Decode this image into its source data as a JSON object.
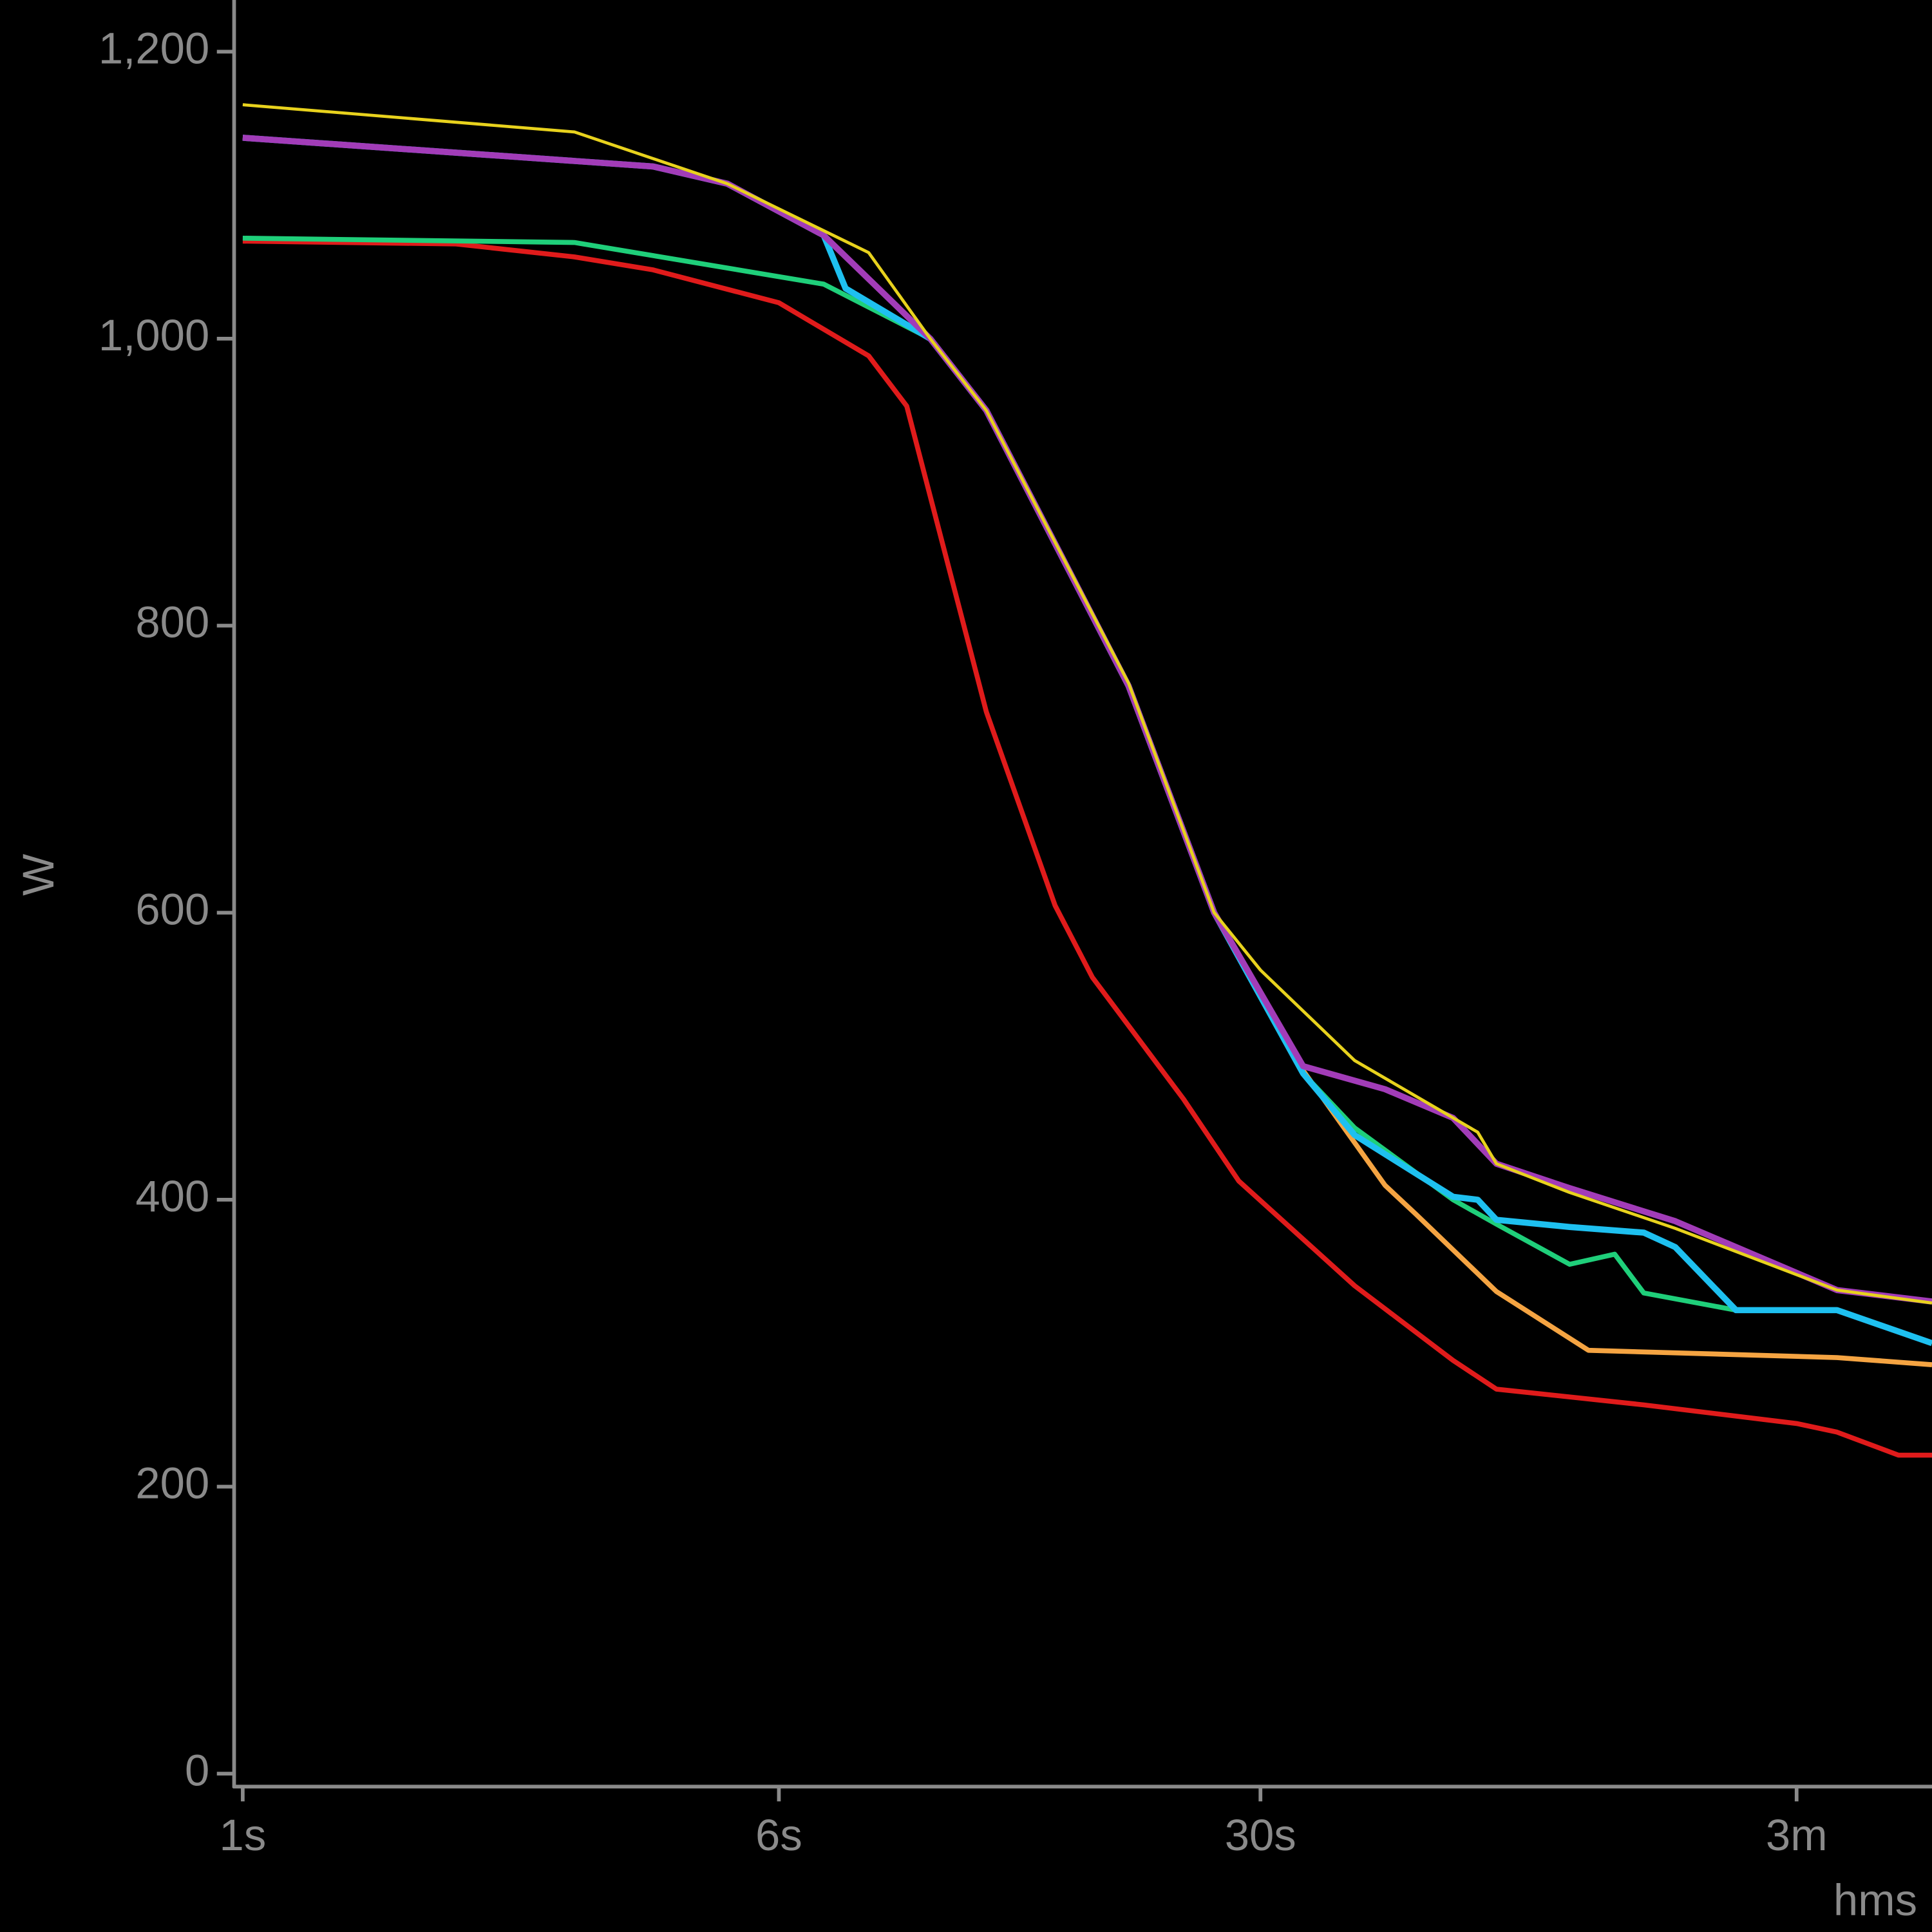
{
  "chart_data": {
    "type": "line",
    "y_label": "W",
    "x_label": "hms",
    "xscale": "log",
    "xlim": [
      1,
      283
    ],
    "ylim": [
      -9,
      1236
    ],
    "xticks": [
      {
        "value": 1,
        "label": "1s"
      },
      {
        "value": 6,
        "label": "6s"
      },
      {
        "value": 30,
        "label": "30s"
      },
      {
        "value": 180,
        "label": "3m"
      }
    ],
    "yticks": [
      0,
      200,
      400,
      600,
      800,
      {
        "value": 1000,
        "label": "1,000"
      },
      {
        "value": 1200,
        "label": "1,200"
      }
    ],
    "series": [
      {
        "color": "#e01b1b",
        "width": 4,
        "x": [
          1,
          2.04,
          3.03,
          3.94,
          6,
          8.1,
          9.2,
          12,
          15.1,
          17.1,
          23.2,
          27.9,
          41.1,
          57.1,
          66,
          108,
          180,
          206,
          253,
          283
        ],
        "values": [
          1068,
          1066,
          1057,
          1048,
          1025,
          988,
          953,
          740,
          605,
          555,
          470,
          413,
          340,
          288,
          268,
          257,
          244,
          238,
          222,
          222
        ]
      },
      {
        "color": "#f5a442",
        "width": 4,
        "x": [
          1,
          3.94,
          5.05,
          6.97,
          9.95,
          12,
          19.3,
          25.7,
          34.6,
          45.5,
          50.4,
          66,
          89.8,
          206,
          283
        ],
        "values": [
          1140,
          1120,
          1108,
          1072,
          1000,
          950,
          758,
          600,
          490,
          410,
          390,
          336,
          295,
          290,
          285
        ]
      },
      {
        "color": "#1fcf7a",
        "width": 4,
        "x": [
          1,
          3.03,
          6.97,
          9.95,
          12,
          19.3,
          25.7,
          34.6,
          41.1,
          57.1,
          66,
          84.3,
          98,
          108,
          147,
          206,
          283
        ],
        "values": [
          1070,
          1067,
          1038,
          1000,
          950,
          758,
          600,
          488,
          450,
          400,
          383,
          355,
          362,
          335,
          323,
          323,
          300
        ]
      },
      {
        "color": "#1ec0f0",
        "width": 5,
        "x": [
          1,
          3.94,
          5.05,
          6.97,
          7.5,
          9.95,
          12,
          19.3,
          25.7,
          34.6,
          41.1,
          57.1,
          62,
          66,
          84.3,
          108,
          120,
          147,
          206,
          283
        ],
        "values": [
          1140,
          1120,
          1108,
          1072,
          1035,
          1000,
          950,
          758,
          600,
          488,
          445,
          402,
          400,
          386,
          381,
          377,
          367,
          323,
          323,
          300
        ]
      },
      {
        "color": "#a23cb8",
        "width": 5,
        "x": [
          1,
          3.94,
          5.05,
          6.97,
          9.95,
          12,
          19.3,
          25.7,
          34.6,
          45.5,
          57.1,
          66,
          84.3,
          120,
          206,
          283
        ],
        "values": [
          1140,
          1120,
          1108,
          1072,
          1000,
          950,
          758,
          600,
          493,
          477,
          457,
          425,
          408,
          385,
          337,
          329
        ]
      },
      {
        "color": "#e8d21d",
        "width": 2.5,
        "x": [
          1,
          3.03,
          5.05,
          8.1,
          9.95,
          12,
          19.3,
          25.7,
          30,
          41.1,
          62,
          66,
          84.3,
          120,
          206,
          283
        ],
        "values": [
          1163,
          1144,
          1108,
          1060,
          1000,
          950,
          760,
          600,
          560,
          497,
          447,
          425,
          405,
          380,
          337,
          328
        ]
      }
    ]
  }
}
